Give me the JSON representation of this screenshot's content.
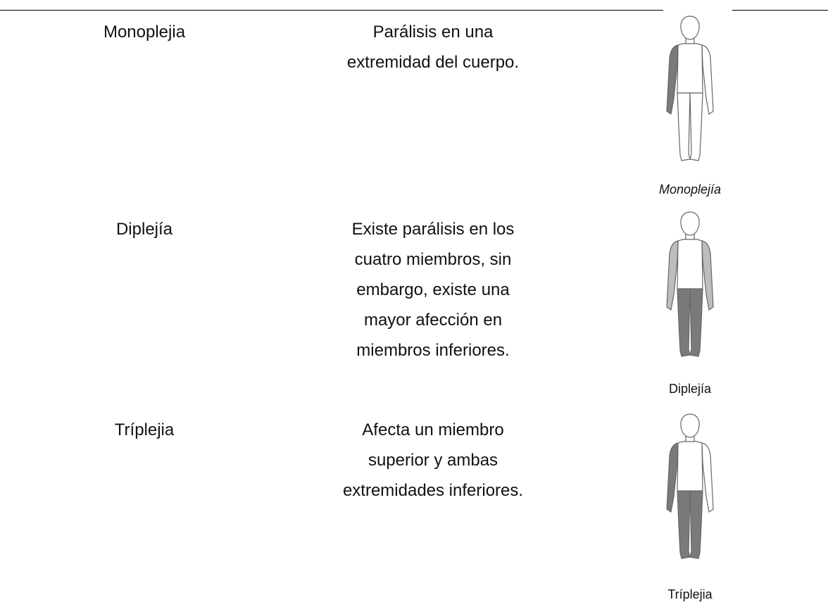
{
  "table": {
    "rows": [
      {
        "term": "Monoplejia",
        "description": [
          "Parálisis en una",
          "extremidad del cuerpo."
        ],
        "caption": "Monoplejía"
      },
      {
        "term": "Diplejía",
        "description": [
          "Existe parálisis en los",
          "cuatro miembros, sin",
          "embargo, existe una",
          "mayor afección en",
          "miembros inferiores."
        ],
        "caption": "Diplejía"
      },
      {
        "term": "Tríplejia",
        "description": [
          "Afecta un miembro",
          "superior y ambas",
          "extremidades inferiores."
        ],
        "caption": "Tríplejia"
      }
    ]
  }
}
